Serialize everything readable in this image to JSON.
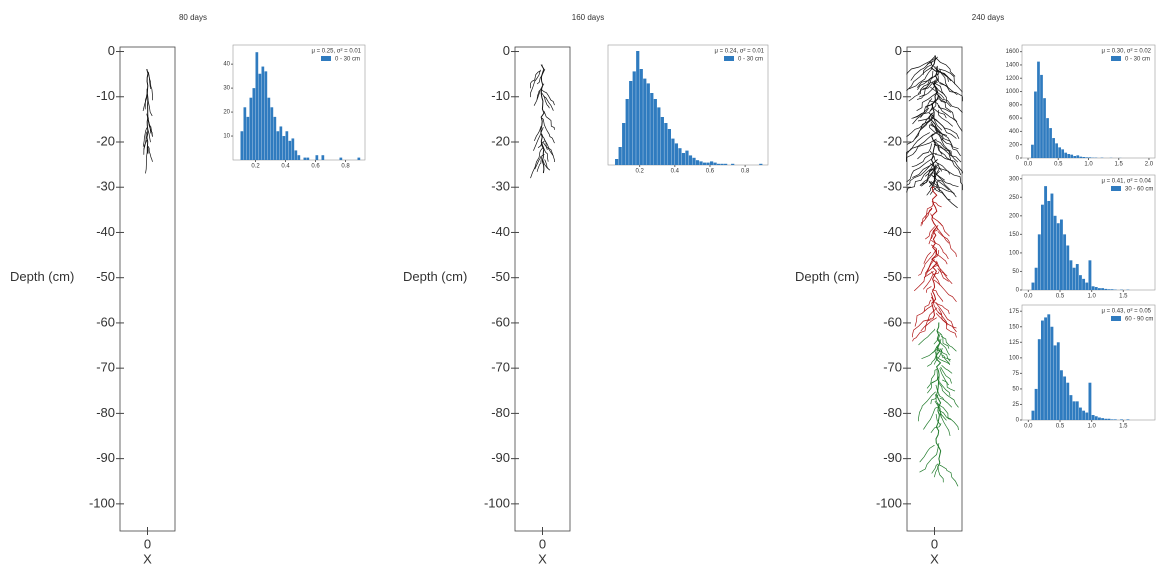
{
  "chart_data": [
    {
      "type": "root",
      "title": "80 days",
      "ylabel": "Depth (cm)",
      "xlabel": "X",
      "xticks": [
        0
      ],
      "ylim": [
        -106,
        1
      ],
      "yticks": [
        0,
        -10,
        -20,
        -30,
        -40,
        -50,
        -60,
        -70,
        -80,
        -90,
        -100
      ]
    },
    {
      "type": "histogram",
      "annotation": "μ = 0.25, σ² = 0.01",
      "label": "0 - 30 cm",
      "color": "#2f7bbf",
      "legend": "upper right",
      "bins": [
        0.1,
        0.12,
        0.14,
        0.16,
        0.18,
        0.2,
        0.22,
        0.24,
        0.26,
        0.28,
        0.3,
        0.32,
        0.34,
        0.36,
        0.38,
        0.4,
        0.42,
        0.44,
        0.46,
        0.48,
        0.5,
        0.52,
        0.54,
        0.56,
        0.58,
        0.6,
        0.62,
        0.64,
        0.66,
        0.68,
        0.7,
        0.72,
        0.74,
        0.76,
        0.78,
        0.8,
        0.82,
        0.84,
        0.86,
        0.88,
        0.9
      ],
      "counts": [
        12,
        22,
        18,
        26,
        30,
        45,
        36,
        39,
        37,
        26,
        22,
        18,
        12,
        14,
        10,
        12,
        8,
        9,
        4,
        2,
        0,
        1,
        1,
        0,
        0,
        2,
        0,
        2,
        0,
        0,
        0,
        0,
        0,
        1,
        0,
        0,
        0,
        0,
        0,
        1
      ],
      "xlim": [
        0.05,
        0.93
      ],
      "ylim": [
        0,
        48
      ],
      "xticks": [
        0.2,
        0.4,
        0.6,
        0.8
      ],
      "yticks": [
        10,
        20,
        30,
        40
      ]
    },
    {
      "type": "root",
      "title": "160 days",
      "ylabel": "Depth (cm)",
      "xlabel": "X",
      "xticks": [
        0
      ],
      "ylim": [
        -106,
        1
      ],
      "yticks": [
        0,
        -10,
        -20,
        -30,
        -40,
        -50,
        -60,
        -70,
        -80,
        -90,
        -100
      ]
    },
    {
      "type": "histogram",
      "annotation": "μ = 0.24, σ² = 0.01",
      "label": "0 - 30 cm",
      "color": "#2f7bbf",
      "legend": "upper right",
      "bins": [
        0.06,
        0.08,
        0.1,
        0.12,
        0.14,
        0.16,
        0.18,
        0.2,
        0.22,
        0.24,
        0.26,
        0.28,
        0.3,
        0.32,
        0.34,
        0.36,
        0.38,
        0.4,
        0.42,
        0.44,
        0.46,
        0.48,
        0.5,
        0.52,
        0.54,
        0.56,
        0.58,
        0.6,
        0.62,
        0.64,
        0.66,
        0.68,
        0.7,
        0.72,
        0.74,
        0.76,
        0.78,
        0.8,
        0.82,
        0.84,
        0.86,
        0.88,
        0.9
      ],
      "counts": [
        5,
        15,
        35,
        55,
        70,
        78,
        95,
        80,
        72,
        68,
        60,
        55,
        48,
        40,
        35,
        30,
        22,
        18,
        14,
        10,
        12,
        8,
        6,
        4,
        3,
        2,
        2,
        3,
        2,
        1,
        1,
        1,
        0,
        1,
        0,
        0,
        0,
        0,
        0,
        0,
        0,
        1
      ],
      "xlim": [
        0.02,
        0.93
      ],
      "ylim": [
        0,
        100
      ],
      "xticks": [
        0.2,
        0.4,
        0.6,
        0.8
      ]
    },
    {
      "type": "root",
      "title": "240 days",
      "ylabel": "Depth (cm)",
      "xlabel": "X",
      "xticks": [
        0
      ],
      "ylim": [
        -106,
        1
      ],
      "yticks": [
        0,
        -10,
        -20,
        -30,
        -40,
        -50,
        -60,
        -70,
        -80,
        -90,
        -100
      ]
    },
    {
      "type": "histogram",
      "annotation": "μ = 0.30, σ² = 0.02",
      "label": "0 - 30 cm",
      "color": "#2f7bbf",
      "legend": "upper right",
      "bins": [
        0.05,
        0.1,
        0.15,
        0.2,
        0.25,
        0.3,
        0.35,
        0.4,
        0.45,
        0.5,
        0.55,
        0.6,
        0.65,
        0.7,
        0.75,
        0.8,
        0.85,
        0.9,
        0.95,
        1.0,
        1.05,
        1.1,
        1.15,
        1.2,
        1.25,
        1.3,
        1.35,
        1.4,
        1.45,
        1.5,
        1.55,
        1.6
      ],
      "counts": [
        200,
        1000,
        1450,
        1250,
        900,
        600,
        450,
        300,
        220,
        160,
        130,
        80,
        60,
        50,
        30,
        40,
        20,
        15,
        10,
        10,
        5,
        5,
        0,
        5,
        0,
        0,
        3,
        0,
        0,
        2,
        0
      ],
      "xlim": [
        -0.1,
        2.1
      ],
      "ylim": [
        0,
        1700
      ],
      "xticks": [
        {
          "value": 0,
          "label": "0.0"
        },
        {
          "value": 0.5,
          "label": "0.5"
        },
        {
          "value": 1,
          "label": "1.0"
        },
        {
          "value": 1.5,
          "label": "1.5"
        },
        {
          "value": 2,
          "label": "2.0"
        }
      ],
      "yticks": [
        0,
        200,
        400,
        600,
        800,
        1000,
        1200,
        1400,
        1600
      ]
    },
    {
      "type": "histogram",
      "annotation": "μ = 0.41, σ² = 0.04",
      "label": "30 - 60 cm",
      "color": "#2f7bbf",
      "legend": "upper right",
      "bins": [
        0.05,
        0.1,
        0.15,
        0.2,
        0.25,
        0.3,
        0.35,
        0.4,
        0.45,
        0.5,
        0.55,
        0.6,
        0.65,
        0.7,
        0.75,
        0.8,
        0.85,
        0.9,
        0.95,
        1.0,
        1.05,
        1.1,
        1.15,
        1.2,
        1.25,
        1.3,
        1.35,
        1.4,
        1.45,
        1.5,
        1.55,
        1.6
      ],
      "counts": [
        20,
        60,
        150,
        230,
        280,
        240,
        260,
        200,
        180,
        190,
        150,
        120,
        80,
        60,
        70,
        40,
        30,
        20,
        80,
        10,
        8,
        5,
        5,
        3,
        2,
        2,
        1,
        0,
        1,
        0,
        1
      ],
      "xlim": [
        -0.1,
        2.0
      ],
      "ylim": [
        0,
        310
      ],
      "xticks": [
        {
          "value": 0,
          "label": "0.0"
        },
        {
          "value": 0.5,
          "label": "0.5"
        },
        {
          "value": 1,
          "label": "1.0"
        },
        {
          "value": 1.5,
          "label": "1.5"
        }
      ],
      "yticks": [
        0,
        50,
        100,
        150,
        200,
        250,
        300
      ]
    },
    {
      "type": "histogram",
      "annotation": "μ = 0.43, σ² = 0.05",
      "label": "60 - 90 cm",
      "color": "#2f7bbf",
      "legend": "upper right",
      "bins": [
        0.05,
        0.1,
        0.15,
        0.2,
        0.25,
        0.3,
        0.35,
        0.4,
        0.45,
        0.5,
        0.55,
        0.6,
        0.65,
        0.7,
        0.75,
        0.8,
        0.85,
        0.9,
        0.95,
        1.0,
        1.05,
        1.1,
        1.15,
        1.2,
        1.25,
        1.3,
        1.35,
        1.4,
        1.45,
        1.5,
        1.55,
        1.6
      ],
      "counts": [
        15,
        50,
        130,
        160,
        165,
        170,
        150,
        120,
        125,
        80,
        70,
        60,
        40,
        30,
        30,
        20,
        15,
        12,
        60,
        8,
        6,
        4,
        3,
        2,
        2,
        1,
        1,
        0,
        1,
        0,
        1
      ],
      "xlim": [
        -0.1,
        2.0
      ],
      "ylim": [
        0,
        185
      ],
      "xticks": [
        {
          "value": 0,
          "label": "0.0"
        },
        {
          "value": 0.5,
          "label": "0.5"
        },
        {
          "value": 1,
          "label": "1.0"
        },
        {
          "value": 1.5,
          "label": "1.5"
        }
      ],
      "yticks": [
        0,
        25,
        50,
        75,
        100,
        125,
        150,
        175
      ]
    }
  ]
}
